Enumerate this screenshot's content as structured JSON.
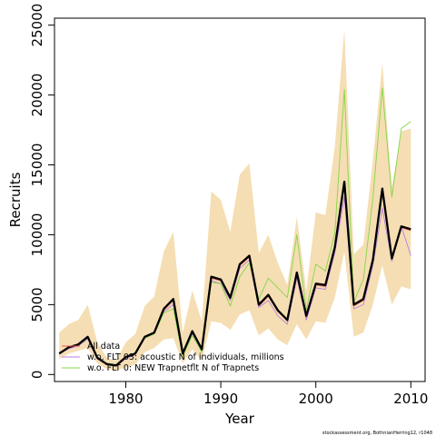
{
  "chart_data": {
    "type": "line",
    "xlabel": "Year",
    "ylabel": "Recruits",
    "xlim": [
      1972.5,
      2011.5
    ],
    "ylim": [
      -500,
      25500
    ],
    "x_ticks": [
      1980,
      1990,
      2000,
      2010
    ],
    "y_ticks": [
      0,
      5000,
      10000,
      15000,
      20000,
      25000
    ],
    "x": [
      1973,
      1974,
      1975,
      1976,
      1977,
      1978,
      1979,
      1980,
      1981,
      1982,
      1983,
      1984,
      1985,
      1986,
      1987,
      1988,
      1989,
      1990,
      1991,
      1992,
      1993,
      1994,
      1995,
      1996,
      1997,
      1998,
      1999,
      2000,
      2001,
      2002,
      2003,
      2004,
      2005,
      2006,
      2007,
      2008,
      2009,
      2010
    ],
    "band": {
      "color": "#f5deb3",
      "lower": [
        1100,
        1500,
        1700,
        1900,
        800,
        400,
        300,
        500,
        700,
        1600,
        1900,
        2500,
        2600,
        800,
        1800,
        1000,
        3800,
        3700,
        3200,
        4300,
        4600,
        2800,
        3300,
        2500,
        2100,
        3600,
        2500,
        3800,
        3700,
        5500,
        8800,
        2700,
        3000,
        5000,
        7800,
        5000,
        6300,
        6100
      ],
      "upper": [
        3000,
        3600,
        3900,
        5000,
        2300,
        1200,
        1000,
        2300,
        2900,
        4900,
        5600,
        8800,
        10200,
        3000,
        6000,
        3800,
        13100,
        12500,
        10200,
        14300,
        15100,
        8700,
        10000,
        8000,
        6400,
        11300,
        6000,
        11600,
        11400,
        16300,
        24700,
        8600,
        9300,
        15300,
        22300,
        13400,
        17400,
        17600
      ]
    },
    "series": [
      {
        "name": "",
        "color": "#000000",
        "width": 2.3,
        "values": [
          1500,
          1950,
          2150,
          2700,
          1200,
          750,
          650,
          1250,
          1500,
          2700,
          3000,
          4700,
          5400,
          1500,
          3100,
          1800,
          7000,
          6800,
          5500,
          7900,
          8500,
          5000,
          5700,
          4600,
          3900,
          7300,
          4200,
          6500,
          6400,
          9100,
          13800,
          5000,
          5400,
          8200,
          13300,
          8300,
          10600,
          10400
        ]
      },
      {
        "name": "All data",
        "color": "#e05a5a",
        "width": 0.9,
        "values": [
          1450,
          1900,
          2100,
          2650,
          1150,
          700,
          600,
          1200,
          1450,
          2650,
          2950,
          4600,
          5300,
          1450,
          3050,
          1750,
          6900,
          6700,
          5400,
          7800,
          8400,
          4900,
          5600,
          4500,
          3850,
          7200,
          4100,
          6400,
          6300,
          9000,
          13600,
          4900,
          5300,
          8100,
          13100,
          8200,
          10500,
          10300
        ]
      },
      {
        "name": "w.o. FLT 03:   acoustic   N of individuals, millions",
        "color": "#b97ee0",
        "width": 0.9,
        "values": [
          1450,
          1850,
          2050,
          2550,
          1100,
          700,
          600,
          1150,
          1400,
          2600,
          2900,
          4500,
          5000,
          1350,
          2900,
          1700,
          6700,
          6500,
          5300,
          7600,
          8200,
          4800,
          5300,
          4200,
          3600,
          6900,
          3900,
          6200,
          6100,
          8700,
          12700,
          4700,
          5000,
          7800,
          11900,
          8100,
          10600,
          8500
        ]
      },
      {
        "name": "w.o. FLT 0: NEW Trapnetflt    N of Trapnets",
        "color": "#84d648",
        "width": 0.9,
        "values": [
          1450,
          1950,
          2100,
          2600,
          1150,
          700,
          600,
          1200,
          1500,
          2600,
          2900,
          4400,
          4700,
          1300,
          2800,
          1600,
          6600,
          6500,
          4900,
          7000,
          8000,
          5400,
          6900,
          6200,
          5500,
          10000,
          4600,
          7900,
          7400,
          10100,
          20400,
          5200,
          6800,
          12600,
          20500,
          12700,
          17600,
          18100
        ]
      }
    ],
    "legend_position": "bottom-left",
    "grid": false
  },
  "credit": "stockassessment.org, BothnianHerring12, r1048"
}
